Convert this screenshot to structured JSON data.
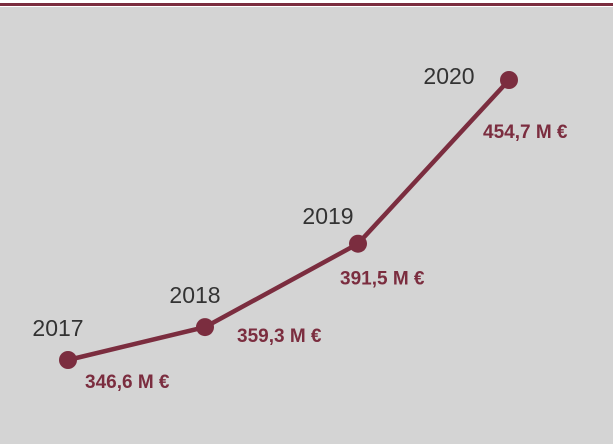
{
  "chart_data": {
    "type": "line",
    "categories": [
      "2017",
      "2018",
      "2019",
      "2020"
    ],
    "values": [
      346.6,
      359.3,
      391.5,
      454.7
    ],
    "value_labels": [
      "346,6 M €",
      "359,3 M €",
      "391,5 M €",
      "454,7 M €"
    ],
    "color": "#7b2d3f"
  }
}
